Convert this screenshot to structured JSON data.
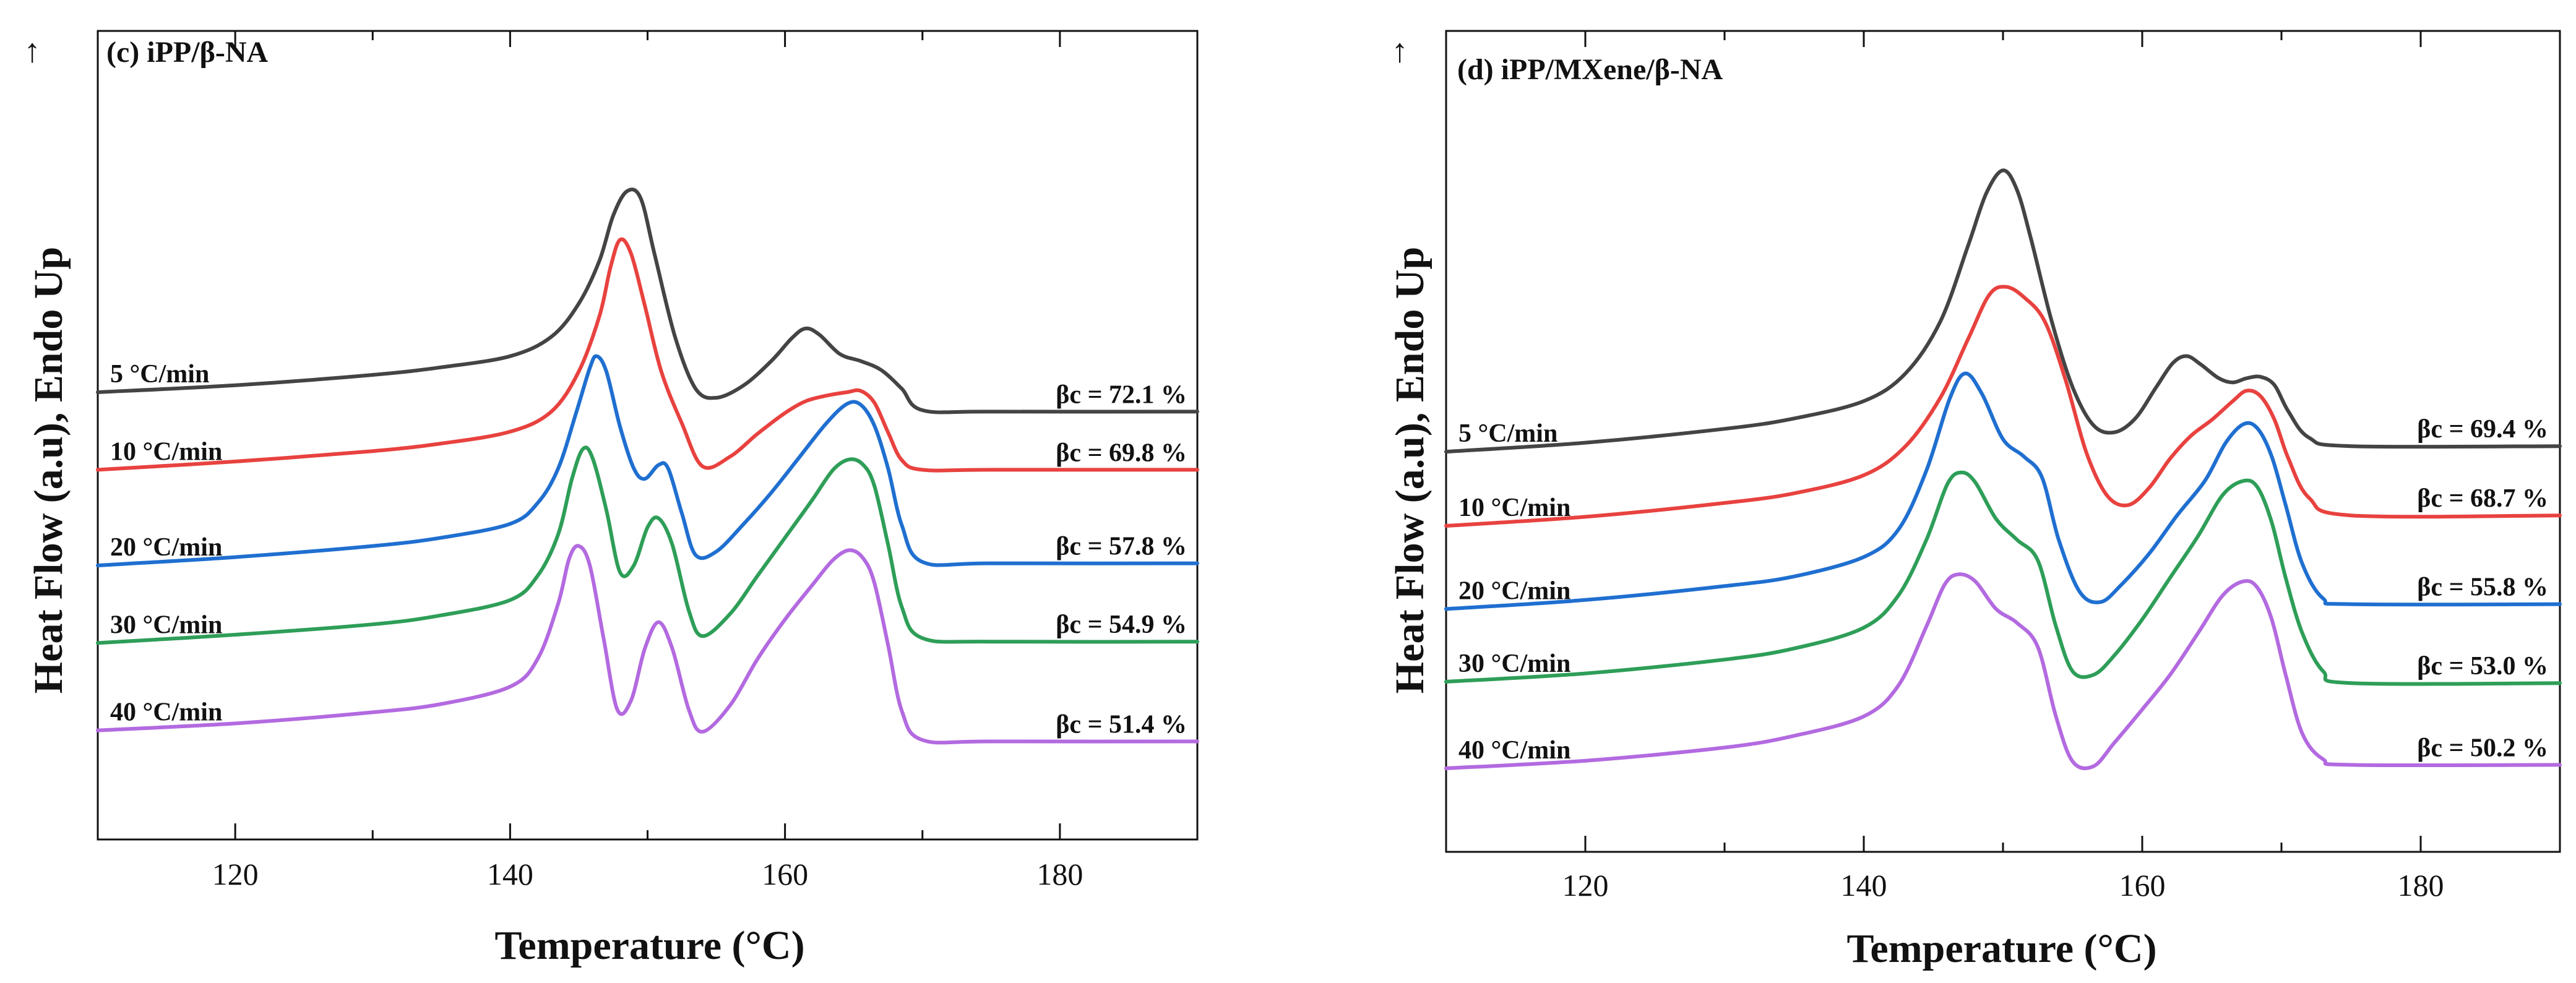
{
  "chart_data": [
    {
      "type": "line",
      "panel_label": "(c) iPP/β-NA",
      "xlabel": "Temperature (°C)",
      "ylabel": "Heat Flow (a.u), Endo Up",
      "arrow": "↑",
      "xlim": [
        110,
        190
      ],
      "ylim": [
        0,
        10
      ],
      "xticks": [
        120,
        140,
        160,
        180
      ],
      "grid": false,
      "series": [
        {
          "name": "5 °C/min",
          "rate_label": "5  °C/min",
          "beta_label": "βc = 72.1 %",
          "color": "#444444",
          "x": [
            110,
            120,
            130,
            135,
            140,
            143,
            145,
            146.5,
            147.5,
            148.5,
            149.5,
            150.5,
            152,
            153.5,
            155,
            157,
            159,
            160.5,
            161.5,
            162.5,
            164,
            165.5,
            167,
            168.5,
            170,
            175,
            190
          ],
          "y": [
            5.5,
            5.6,
            5.75,
            5.86,
            6.02,
            6.3,
            6.78,
            7.4,
            8.05,
            8.4,
            8.3,
            7.5,
            6.3,
            5.55,
            5.42,
            5.6,
            5.95,
            6.28,
            6.42,
            6.33,
            6.05,
            5.95,
            5.82,
            5.55,
            5.24,
            5.22,
            5.22
          ]
        },
        {
          "name": "10 °C/min",
          "rate_label": "10 °C/min",
          "beta_label": "βc = 69.8 %",
          "color": "#e8423f",
          "x": [
            110,
            120,
            130,
            135,
            140,
            143,
            145,
            146.5,
            147.3,
            148,
            148.8,
            149.8,
            151,
            152.5,
            154,
            156,
            158,
            160,
            161.5,
            163,
            164.5,
            165.5,
            166.5,
            167.5,
            168.5,
            170,
            175,
            190
          ],
          "y": [
            4.38,
            4.5,
            4.65,
            4.76,
            4.93,
            5.22,
            5.8,
            6.6,
            7.3,
            7.7,
            7.5,
            6.75,
            5.8,
            5.05,
            4.43,
            4.57,
            4.9,
            5.2,
            5.37,
            5.45,
            5.5,
            5.52,
            5.35,
            4.92,
            4.52,
            4.38,
            4.38,
            4.38
          ]
        },
        {
          "name": "20 °C/min",
          "rate_label": "20 °C/min",
          "beta_label": "βc = 57.8 %",
          "color": "#1f6fd0",
          "x": [
            110,
            120,
            130,
            135,
            140,
            142,
            143.5,
            144.8,
            145.8,
            146.3,
            147,
            148,
            149,
            149.8,
            150.8,
            151.5,
            152.5,
            153.5,
            155,
            157,
            159,
            161,
            163,
            164.5,
            165.5,
            166.5,
            167.5,
            168.5,
            170,
            175,
            190
          ],
          "y": [
            3.0,
            3.12,
            3.28,
            3.4,
            3.6,
            3.9,
            4.4,
            5.2,
            5.85,
            6.02,
            5.8,
            5.0,
            4.4,
            4.25,
            4.45,
            4.4,
            3.75,
            3.15,
            3.2,
            3.6,
            4.05,
            4.55,
            5.05,
            5.33,
            5.32,
            5.02,
            4.4,
            3.58,
            3.05,
            3.03,
            3.03
          ]
        },
        {
          "name": "30 °C/min",
          "rate_label": "30 °C/min",
          "beta_label": "βc = 54.9 %",
          "color": "#2e9e58",
          "x": [
            110,
            120,
            130,
            135,
            140,
            142,
            143.5,
            144.5,
            145.3,
            146,
            147,
            148,
            149,
            150,
            150.8,
            151.8,
            153,
            154,
            156,
            158,
            160,
            162,
            163.5,
            164.7,
            165.7,
            166.5,
            167.5,
            168.5,
            170,
            175,
            190
          ],
          "y": [
            1.88,
            2.0,
            2.15,
            2.28,
            2.5,
            2.85,
            3.45,
            4.25,
            4.68,
            4.55,
            3.8,
            2.9,
            3.0,
            3.55,
            3.68,
            3.3,
            2.35,
            1.98,
            2.3,
            2.85,
            3.4,
            3.95,
            4.38,
            4.53,
            4.45,
            4.15,
            3.3,
            2.4,
            1.95,
            1.9,
            1.9
          ]
        },
        {
          "name": "40 °C/min",
          "rate_label": "40 °C/min",
          "beta_label": "βc = 51.4 %",
          "color": "#b36ae0",
          "x": [
            110,
            120,
            130,
            135,
            140,
            142,
            143.5,
            144.3,
            145,
            145.8,
            146.8,
            147.8,
            148.8,
            149.8,
            150.8,
            151.8,
            153,
            154,
            156,
            158,
            160,
            162,
            163.5,
            164.7,
            165.7,
            166.5,
            167.5,
            168.5,
            170,
            175,
            190
          ],
          "y": [
            0.62,
            0.72,
            0.88,
            1.0,
            1.25,
            1.65,
            2.45,
            3.1,
            3.28,
            3.0,
            1.95,
            0.92,
            1.05,
            1.8,
            2.18,
            1.8,
            0.92,
            0.6,
            0.98,
            1.65,
            2.22,
            2.72,
            3.08,
            3.22,
            3.1,
            2.75,
            1.85,
            0.9,
            0.48,
            0.46,
            0.46
          ]
        }
      ]
    },
    {
      "type": "line",
      "panel_label": "(d) iPP/MXene/β-NA",
      "xlabel": "Temperature (°C)",
      "ylabel": "Heat Flow (a.u), Endo Up",
      "arrow": "↑",
      "xlim": [
        110,
        190
      ],
      "ylim": [
        0,
        10
      ],
      "xticks": [
        120,
        140,
        160,
        180
      ],
      "grid": false,
      "series": [
        {
          "name": "5 °C/min",
          "rate_label": "5  °C/min",
          "beta_label": "βc = 69.4 %",
          "color": "#444444",
          "x": [
            110,
            120,
            130,
            135,
            140,
            143,
            145.5,
            147.5,
            148.8,
            150,
            151,
            152,
            153.5,
            155,
            156.5,
            158,
            159.5,
            161,
            162.2,
            163.2,
            164.2,
            165.5,
            166.5,
            167.5,
            168.5,
            169.5,
            170.5,
            172,
            175,
            190
          ],
          "y": [
            4.82,
            4.95,
            5.15,
            5.3,
            5.55,
            5.95,
            6.7,
            7.8,
            8.55,
            8.88,
            8.6,
            7.9,
            6.7,
            5.75,
            5.2,
            5.1,
            5.3,
            5.75,
            6.1,
            6.2,
            6.08,
            5.88,
            5.82,
            5.88,
            5.9,
            5.78,
            5.4,
            5.02,
            4.9,
            4.9
          ]
        },
        {
          "name": "10 °C/min",
          "rate_label": "10 °C/min",
          "beta_label": "βc = 68.7 %",
          "color": "#e8423f",
          "x": [
            110,
            120,
            130,
            135,
            140,
            143,
            145.5,
            147.5,
            149,
            150.2,
            151.5,
            153,
            154.5,
            156,
            157.5,
            159,
            160.5,
            162,
            163.5,
            165,
            166.5,
            167.5,
            168.5,
            169.5,
            170.5,
            172,
            175,
            190
          ],
          "y": [
            3.75,
            3.88,
            4.08,
            4.22,
            4.48,
            4.9,
            5.6,
            6.45,
            7.08,
            7.2,
            7.05,
            6.7,
            5.85,
            4.8,
            4.18,
            4.05,
            4.3,
            4.72,
            5.05,
            5.28,
            5.55,
            5.7,
            5.62,
            5.28,
            4.72,
            4.15,
            3.9,
            3.9
          ]
        },
        {
          "name": "20 °C/min",
          "rate_label": "20 °C/min",
          "beta_label": "βc = 55.8 %",
          "color": "#1f6fd0",
          "x": [
            110,
            120,
            130,
            135,
            140,
            142.5,
            144.5,
            146.2,
            147.3,
            148.5,
            150,
            151.5,
            152.8,
            154,
            155.5,
            157,
            158.5,
            160.5,
            162.5,
            164.5,
            166,
            167.3,
            168.3,
            169.3,
            170.3,
            171.5,
            173,
            175,
            190
          ],
          "y": [
            2.55,
            2.68,
            2.88,
            3.02,
            3.3,
            3.7,
            4.55,
            5.6,
            5.95,
            5.65,
            5.0,
            4.75,
            4.45,
            3.55,
            2.8,
            2.65,
            2.9,
            3.35,
            3.9,
            4.4,
            4.95,
            5.22,
            5.15,
            4.75,
            4.05,
            3.2,
            2.7,
            2.62,
            2.62
          ]
        },
        {
          "name": "30 °C/min",
          "rate_label": "30 °C/min",
          "beta_label": "βc = 53.0 %",
          "color": "#2e9e58",
          "x": [
            110,
            120,
            130,
            135,
            140,
            142.5,
            144.5,
            146,
            147,
            148,
            149.5,
            151,
            152.5,
            153.8,
            155,
            156.5,
            158,
            160,
            162,
            164,
            165.8,
            167.3,
            168.3,
            169.3,
            170.3,
            171.5,
            173,
            175,
            190
          ],
          "y": [
            1.5,
            1.62,
            1.82,
            1.98,
            2.28,
            2.75,
            3.55,
            4.35,
            4.52,
            4.38,
            3.85,
            3.55,
            3.25,
            2.3,
            1.65,
            1.6,
            1.88,
            2.4,
            3.0,
            3.6,
            4.2,
            4.4,
            4.3,
            3.8,
            3.0,
            2.2,
            1.65,
            1.48,
            1.48
          ]
        },
        {
          "name": "40 °C/min",
          "rate_label": "40 °C/min",
          "beta_label": "βc = 50.2 %",
          "color": "#b36ae0",
          "x": [
            110,
            120,
            130,
            135,
            140,
            142.5,
            144.5,
            145.8,
            146.8,
            148,
            149.5,
            151,
            152.5,
            153.8,
            155,
            156.5,
            158,
            160,
            162,
            164,
            165.8,
            167.3,
            168.3,
            169.3,
            170.3,
            171.5,
            173,
            175,
            190
          ],
          "y": [
            0.25,
            0.36,
            0.55,
            0.72,
            1.0,
            1.45,
            2.3,
            2.9,
            3.05,
            2.95,
            2.55,
            2.35,
            2.0,
            1.0,
            0.35,
            0.28,
            0.62,
            1.1,
            1.6,
            2.2,
            2.75,
            2.95,
            2.85,
            2.4,
            1.6,
            0.75,
            0.38,
            0.3,
            0.3
          ]
        }
      ]
    }
  ]
}
